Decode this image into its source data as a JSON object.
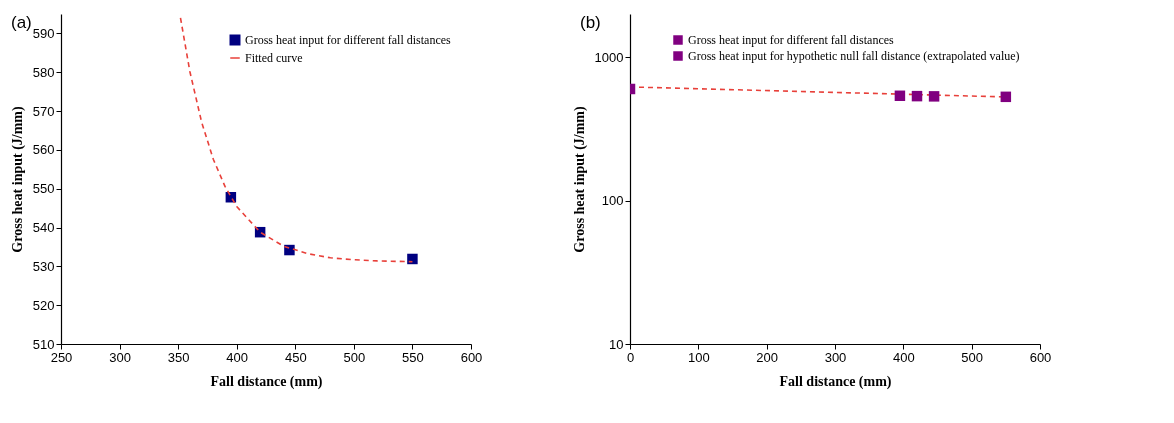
{
  "chart_data": [
    {
      "type": "scatter",
      "title": "(a)",
      "xlabel": "Fall distance (mm)",
      "ylabel": "Gross heat input (J/mm)",
      "xlim": [
        250,
        600
      ],
      "ylim": [
        510,
        595
      ],
      "xticks": [
        250,
        300,
        350,
        400,
        450,
        500,
        550,
        600
      ],
      "yticks": [
        510,
        520,
        530,
        540,
        550,
        560,
        570,
        580,
        590
      ],
      "legend": "top right",
      "series": [
        {
          "name": "Gross heat input for different fall distances",
          "type": "scatter",
          "marker": "square",
          "color": "#000080",
          "x": [
            395,
            420,
            445,
            550
          ],
          "values": [
            547.8,
            538.8,
            534.2,
            531.9
          ]
        },
        {
          "name": "Fitted curve",
          "type": "line",
          "line_style": "dashed",
          "color": "#e8403a",
          "x": [
            352,
            360,
            370,
            380,
            390,
            400,
            420,
            440,
            460,
            480,
            500,
            520,
            550
          ],
          "values": [
            594,
            580.2,
            567.2,
            557.6,
            550.6,
            545.4,
            538.8,
            535.2,
            533.3,
            532.2,
            531.7,
            531.4,
            531.2
          ]
        }
      ]
    },
    {
      "type": "scatter",
      "title": "(b)",
      "xlabel": "Fall distance (mm)",
      "ylabel": "Gross heat input (J/mm)",
      "log": "y",
      "xlim": [
        0,
        600
      ],
      "ylim": [
        10,
        2000
      ],
      "xticks": [
        0,
        100,
        200,
        300,
        400,
        500,
        600
      ],
      "yticks": [
        10,
        100,
        1000
      ],
      "legend": "top right",
      "series": [
        {
          "type": "line",
          "line_style": "dashed",
          "color": "#e8403a",
          "x": [
            0,
            550
          ],
          "values": [
            620,
            528
          ]
        },
        {
          "name": "Gross heat input for different fall distances",
          "type": "scatter",
          "marker": "square",
          "color": "#800080",
          "x": [
            395,
            420,
            445,
            550
          ],
          "values": [
            538,
            535,
            533,
            529
          ]
        },
        {
          "name": "Gross heat input for hypothetic null fall distance (extrapolated value)",
          "type": "scatter",
          "marker": "square",
          "color": "#800080",
          "x": [
            0
          ],
          "values": [
            600
          ]
        }
      ]
    }
  ]
}
